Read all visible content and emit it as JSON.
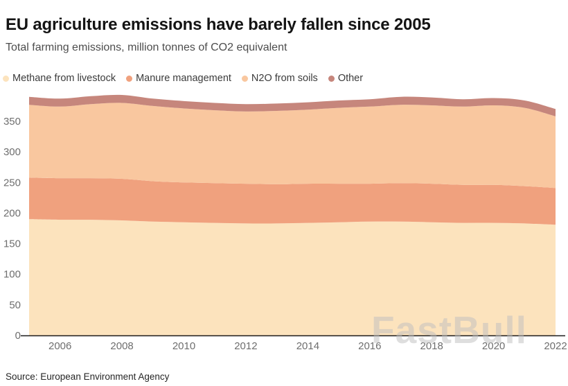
{
  "header": {
    "title": "EU agriculture emissions have barely fallen since 2005",
    "subtitle": "Total farming emissions, million tonnes of CO2 equivalent"
  },
  "chart_data": {
    "type": "area",
    "stacked": true,
    "title": "EU agriculture emissions have barely fallen since 2005",
    "xlabel": "",
    "ylabel": "million tonnes of CO2 equivalent",
    "x": [
      2005,
      2006,
      2007,
      2008,
      2009,
      2010,
      2011,
      2012,
      2013,
      2014,
      2015,
      2016,
      2017,
      2018,
      2019,
      2020,
      2021,
      2022
    ],
    "series": [
      {
        "name": "Methane from livestock",
        "color": "#fce3bd",
        "values": [
          190,
          189,
          189,
          188,
          186,
          185,
          184,
          183,
          183,
          184,
          185,
          186,
          186,
          185,
          184,
          184,
          183,
          181
        ]
      },
      {
        "name": "Manure management",
        "color": "#f0a17e",
        "values": [
          68,
          68,
          68,
          68,
          66,
          65,
          65,
          65,
          64,
          64,
          63,
          62,
          63,
          63,
          62,
          62,
          61,
          60
        ]
      },
      {
        "name": "N2O from soils",
        "color": "#f9c79f",
        "values": [
          119,
          117,
          121,
          124,
          123,
          121,
          119,
          118,
          120,
          121,
          124,
          126,
          128,
          128,
          128,
          130,
          128,
          117
        ]
      },
      {
        "name": "Other",
        "color": "#c6867c",
        "values": [
          13,
          13,
          13,
          13,
          12,
          12,
          12,
          12,
          12,
          12,
          12,
          12,
          13,
          13,
          12,
          12,
          12,
          12
        ]
      }
    ],
    "x_ticks": [
      2006,
      2008,
      2010,
      2012,
      2014,
      2016,
      2018,
      2020,
      2022
    ],
    "y_ticks": [
      0,
      50,
      100,
      150,
      200,
      250,
      300,
      350
    ],
    "ylim": [
      0,
      395
    ],
    "grid": false,
    "legend_position": "top-left",
    "axis_color": "#1a1a1a",
    "tick_label_color": "#6e6e6e"
  },
  "watermark": "FastBull",
  "source": "Source: European Environment Agency"
}
